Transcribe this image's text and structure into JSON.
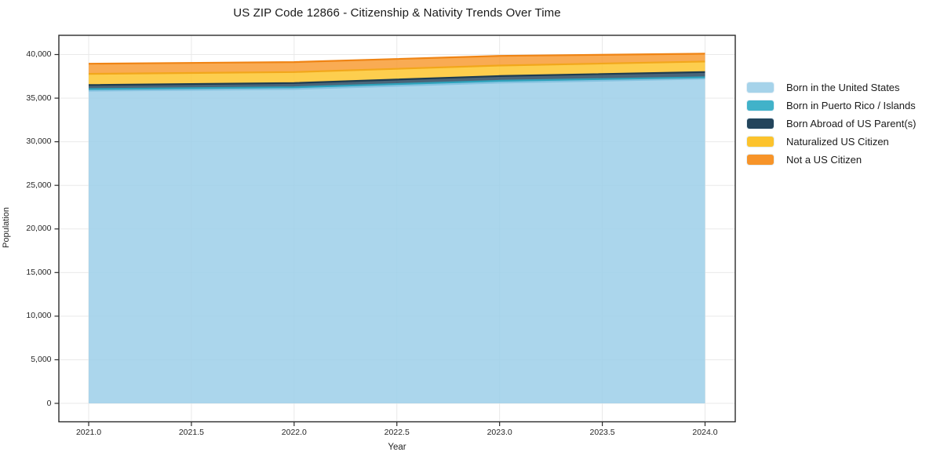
{
  "chart": {
    "title": "US ZIP Code 12866 - Citizenship & Nativity Trends Over Time",
    "xlabel": "Year",
    "ylabel": "Population"
  },
  "chart_data": {
    "type": "area",
    "stacked": true,
    "title": "US ZIP Code 12866 - Citizenship & Nativity Trends Over Time",
    "xlabel": "Year",
    "ylabel": "Population",
    "grid": true,
    "legend_position": "right-outside",
    "x": [
      2021,
      2022,
      2023,
      2024
    ],
    "x_tick_values": [
      2021.0,
      2021.5,
      2022.0,
      2022.5,
      2023.0,
      2023.5,
      2024.0
    ],
    "x_tick_labels": [
      "2021.0",
      "2021.5",
      "2022.0",
      "2022.5",
      "2023.0",
      "2023.5",
      "2024.0"
    ],
    "y_tick_values": [
      0,
      5000,
      10000,
      15000,
      20000,
      25000,
      30000,
      35000,
      40000
    ],
    "y_tick_labels": [
      "0",
      "5,000",
      "10,000",
      "15,000",
      "20,000",
      "25,000",
      "30,000",
      "35,000",
      "40,000"
    ],
    "xlim": [
      2020.85,
      2024.15
    ],
    "ylim": [
      -2100,
      42200
    ],
    "series": [
      {
        "name": "Born in the United States",
        "values": [
          35860,
          36050,
          36780,
          37240
        ],
        "color": "#A6D3EA",
        "fill": "#9CCFE9",
        "line": "#85C2E0"
      },
      {
        "name": "Born in Puerto Rico / Islands",
        "values": [
          180,
          200,
          210,
          150
        ],
        "color": "#41B2C9",
        "fill": "#41B2C9",
        "line": "#2EA2BB"
      },
      {
        "name": "Born Abroad of US Parent(s)",
        "values": [
          460,
          480,
          540,
          600
        ],
        "color": "#23455C",
        "fill": "#2A4A61",
        "line": "#1D3C51"
      },
      {
        "name": "Naturalized US Citizen",
        "values": [
          1290,
          1260,
          1210,
          1210
        ],
        "color": "#FCC32D",
        "fill": "#FDC62F",
        "line": "#F2A71B"
      },
      {
        "name": "Not a US Citizen",
        "values": [
          1160,
          1150,
          1110,
          900
        ],
        "color": "#F79429",
        "fill": "#F89C35",
        "line": "#EF8414"
      }
    ],
    "totals": [
      38950,
      39140,
      39850,
      40100
    ],
    "style": {
      "grid_color": "#e9e9e9",
      "spine_color": "#2b2b2b",
      "background": "#ffffff",
      "fill_opacity": 0.85
    }
  }
}
